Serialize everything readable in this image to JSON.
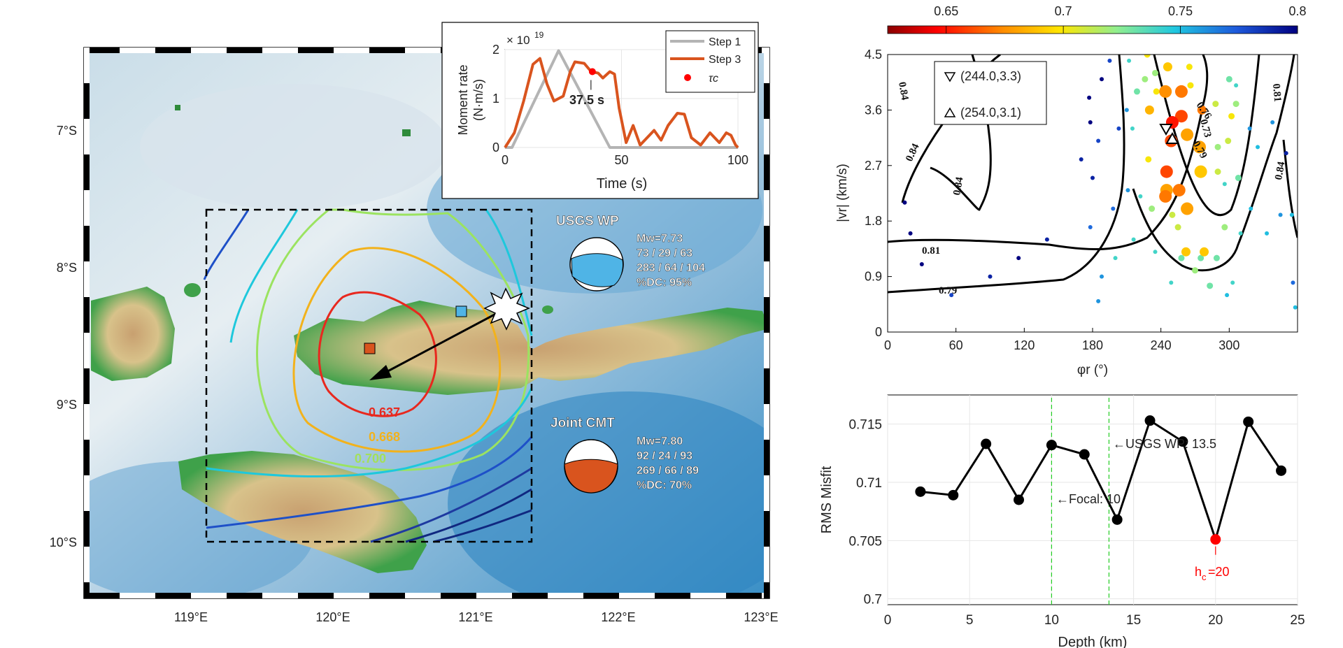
{
  "map": {
    "lat_ticks": [
      "7°S",
      "8°S",
      "9°S",
      "10°S"
    ],
    "lon_ticks": [
      "119°E",
      "120°E",
      "121°E",
      "122°E",
      "123°E"
    ],
    "contour_labels": [
      {
        "text": "0.637",
        "color": "#e8281e"
      },
      {
        "text": "0.668",
        "color": "#f2b21c"
      },
      {
        "text": "0.700",
        "color": "#a3e05a"
      }
    ],
    "colors": {
      "red": "#e8281e",
      "orange": "#f2b21c",
      "green": "#9be360",
      "cyan": "#1ec8dc",
      "blue": "#1e50c8",
      "darkblue": "#102880"
    }
  },
  "usgs": {
    "label": "USGS WP",
    "mw": "Mw=7.73",
    "np1": "73 / 29 / 63",
    "np2": "283 / 64 / 104",
    "dc": "%DC: 95%",
    "color": "#4fb4e6"
  },
  "joint": {
    "label": "Joint CMT",
    "mw": "Mw=7.80",
    "np1": "92 / 24 / 93",
    "np2": "269 / 66 / 89",
    "dc": "%DC: 70%",
    "color": "#d9541e"
  },
  "chart_data": [
    {
      "type": "line",
      "ylabel_line1": "Moment rate",
      "ylabel_line2": "(N·m/s)",
      "xlabel": "Time (s)",
      "exponent": "× 10",
      "exponent_power": "19",
      "xlim": [
        0,
        100
      ],
      "ylim": [
        0,
        2
      ],
      "xticks": [
        "0",
        "50",
        "100"
      ],
      "yticks": [
        "0",
        "1",
        "2"
      ],
      "annotation": "37.5 s",
      "legend": [
        "Step 1",
        "Step 3",
        "τc"
      ],
      "series": [
        {
          "name": "Step 1",
          "color": "#b4b4b4",
          "x": [
            0,
            3,
            23,
            45,
            100
          ],
          "y": [
            0,
            0,
            1.98,
            0,
            0
          ]
        },
        {
          "name": "Step 3",
          "color": "#d9541e",
          "x": [
            0,
            4,
            8,
            12,
            15,
            18,
            21,
            25,
            28,
            30,
            34,
            37,
            40,
            42,
            45,
            47,
            49,
            52,
            55,
            58,
            61,
            64,
            67,
            70,
            74,
            77,
            80,
            84,
            88,
            92,
            95,
            97,
            99,
            100
          ],
          "y": [
            0,
            0.3,
            0.95,
            1.7,
            1.82,
            1.3,
            0.95,
            1.05,
            1.55,
            1.75,
            1.72,
            1.55,
            1.52,
            1.42,
            1.55,
            1.5,
            0.8,
            0.1,
            0.45,
            0.05,
            0.2,
            0.35,
            0.15,
            0.45,
            0.7,
            0.68,
            0.2,
            0.05,
            0.3,
            0.1,
            0.3,
            0.25,
            0.05,
            0
          ]
        },
        {
          "name": "τc",
          "color": "#ff0000",
          "x": [
            37.5
          ],
          "y": [
            1.55
          ]
        }
      ]
    },
    {
      "type": "scatter",
      "xlabel": "φr (°)",
      "ylabel": "|vr| (km/s)",
      "xlim": [
        0,
        360
      ],
      "ylim": [
        0,
        4.5
      ],
      "xticks": [
        "0",
        "60",
        "120",
        "180",
        "240",
        "300"
      ],
      "yticks": [
        "0",
        "0.9",
        "1.8",
        "2.7",
        "3.6",
        "4.5"
      ],
      "colorbar_ticks": [
        "0.65",
        "0.7",
        "0.75",
        "0.8"
      ],
      "colorbar_range": [
        0.625,
        0.8
      ],
      "contour_labels": [
        "0.84",
        "0.84",
        "0.81",
        "0.79",
        "0.84",
        "0.84",
        "0.81",
        "0.73",
        "0.76",
        "0.79"
      ],
      "legend": [
        "(244.0,3.3)",
        "(254.0,3.1)"
      ],
      "points": [
        [
          258,
          3.5,
          0.66,
          1
        ],
        [
          258,
          3.9,
          0.67,
          1
        ],
        [
          249,
          3.1,
          0.66,
          1
        ],
        [
          250,
          3.4,
          0.65,
          1
        ],
        [
          245,
          2.6,
          0.66,
          1
        ],
        [
          244,
          2.2,
          0.67,
          1
        ],
        [
          245,
          2.3,
          0.68,
          1
        ],
        [
          256,
          2.3,
          0.67,
          1
        ],
        [
          263,
          3.2,
          0.68,
          1
        ],
        [
          274,
          3.0,
          0.68,
          1
        ],
        [
          275,
          2.6,
          0.69,
          1
        ],
        [
          263,
          2.0,
          0.68,
          1
        ],
        [
          244,
          3.9,
          0.675,
          1
        ],
        [
          236,
          3.9,
          0.7,
          0
        ],
        [
          266,
          4.0,
          0.7,
          0
        ],
        [
          230,
          3.6,
          0.685,
          0
        ],
        [
          276,
          3.6,
          0.67,
          0
        ],
        [
          290,
          3.0,
          0.72,
          0
        ],
        [
          288,
          3.7,
          0.71,
          0
        ],
        [
          265,
          4.3,
          0.7,
          0
        ],
        [
          246,
          4.3,
          0.69,
          0
        ],
        [
          235,
          4.2,
          0.72,
          0
        ],
        [
          226,
          4.1,
          0.72,
          0
        ],
        [
          219,
          3.9,
          0.73,
          0
        ],
        [
          210,
          3.6,
          0.76,
          0
        ],
        [
          215,
          3.3,
          0.74,
          0
        ],
        [
          203,
          3.3,
          0.78,
          0
        ],
        [
          211,
          2.3,
          0.76,
          0
        ],
        [
          198,
          2.0,
          0.77,
          0
        ],
        [
          229,
          2.8,
          0.7,
          0
        ],
        [
          222,
          2.2,
          0.74,
          0
        ],
        [
          232,
          2.0,
          0.72,
          0
        ],
        [
          250,
          1.9,
          0.71,
          0
        ],
        [
          255,
          1.7,
          0.71,
          0
        ],
        [
          262,
          1.3,
          0.69,
          0
        ],
        [
          258,
          1.2,
          0.73,
          0
        ],
        [
          278,
          1.3,
          0.69,
          0
        ],
        [
          275,
          1.2,
          0.73,
          0
        ],
        [
          289,
          1.2,
          0.73,
          0
        ],
        [
          296,
          2.4,
          0.74,
          0
        ],
        [
          299,
          3.1,
          0.71,
          0
        ],
        [
          290,
          2.6,
          0.71,
          0
        ],
        [
          300,
          4.1,
          0.73,
          0
        ],
        [
          308,
          2.5,
          0.73,
          0
        ],
        [
          306,
          4.0,
          0.74,
          0
        ],
        [
          318,
          3.3,
          0.76,
          0
        ],
        [
          325,
          3.0,
          0.75,
          0
        ],
        [
          338,
          3.4,
          0.76,
          0
        ],
        [
          350,
          2.9,
          0.79,
          0
        ],
        [
          345,
          1.9,
          0.76,
          0
        ],
        [
          333,
          1.6,
          0.75,
          0
        ],
        [
          319,
          2.0,
          0.75,
          0
        ],
        [
          310,
          1.6,
          0.74,
          0
        ],
        [
          296,
          1.7,
          0.72,
          0
        ],
        [
          298,
          0.6,
          0.75,
          0
        ],
        [
          303,
          0.8,
          0.74,
          0
        ],
        [
          283,
          0.75,
          0.73,
          0
        ],
        [
          270,
          1.0,
          0.72,
          0
        ],
        [
          249,
          0.8,
          0.74,
          0
        ],
        [
          235,
          1.3,
          0.74,
          0
        ],
        [
          216,
          1.5,
          0.74,
          0
        ],
        [
          200,
          1.2,
          0.74,
          0
        ],
        [
          188,
          0.9,
          0.76,
          0
        ],
        [
          185,
          0.5,
          0.76,
          0
        ],
        [
          178,
          1.7,
          0.77,
          0
        ],
        [
          180,
          2.5,
          0.79,
          0
        ],
        [
          185,
          3.1,
          0.78,
          0
        ],
        [
          178,
          3.4,
          0.8,
          0
        ],
        [
          188,
          4.1,
          0.8,
          0
        ],
        [
          177,
          3.8,
          0.8,
          0
        ],
        [
          170,
          2.8,
          0.79,
          0
        ],
        [
          140,
          1.5,
          0.79,
          0
        ],
        [
          115,
          1.2,
          0.8,
          0
        ],
        [
          90,
          0.9,
          0.79,
          0
        ],
        [
          56,
          0.6,
          0.78,
          0
        ],
        [
          30,
          1.1,
          0.8,
          0
        ],
        [
          20,
          1.6,
          0.8,
          0
        ],
        [
          15,
          2.1,
          0.8,
          0
        ],
        [
          355,
          1.9,
          0.75,
          0
        ],
        [
          356,
          0.8,
          0.77,
          0
        ],
        [
          358,
          0.4,
          0.75,
          0
        ],
        [
          302,
          3.5,
          0.7,
          0
        ],
        [
          306,
          3.7,
          0.72,
          0
        ],
        [
          228,
          4.5,
          0.7,
          0
        ],
        [
          212,
          4.4,
          0.74,
          0
        ],
        [
          195,
          4.4,
          0.78,
          0
        ]
      ]
    },
    {
      "type": "line",
      "xlabel": "Depth (km)",
      "ylabel": "RMS Misfit",
      "xlim": [
        0,
        25
      ],
      "ylim": [
        0.6995,
        0.7175
      ],
      "xticks": [
        "0",
        "5",
        "10",
        "15",
        "20",
        "25"
      ],
      "yticks": [
        "0.7",
        "0.705",
        "0.71",
        "0.715"
      ],
      "annotations": [
        "←Focal: 10",
        "←USGS WP: 13.5",
        "h",
        "c",
        "=20"
      ],
      "series": [
        {
          "name": "misfit",
          "color": "#000000",
          "x": [
            2,
            4,
            6,
            8,
            10,
            12,
            14,
            16,
            18,
            20,
            22,
            24
          ],
          "y": [
            0.7092,
            0.7089,
            0.7133,
            0.7085,
            0.7132,
            0.7124,
            0.7068,
            0.7153,
            0.7135,
            0.7051,
            0.7152,
            0.711
          ]
        }
      ],
      "highlight": {
        "x": 20,
        "y": 0.7051,
        "color": "#ff0000"
      },
      "vlines": [
        10,
        13.5
      ]
    }
  ]
}
